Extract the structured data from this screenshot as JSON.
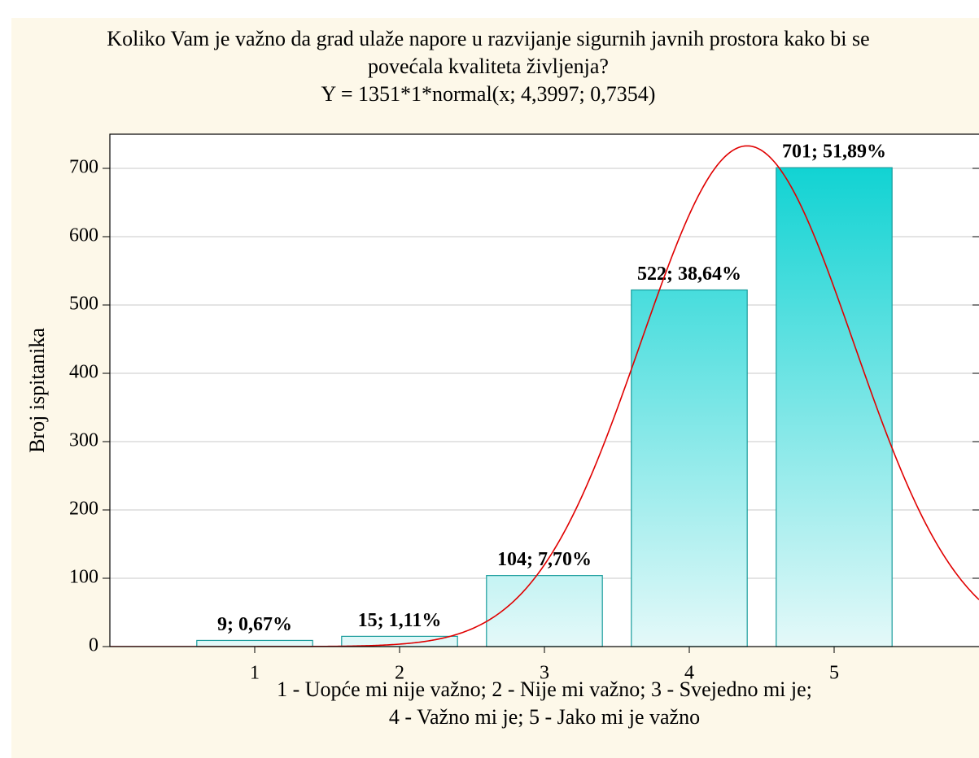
{
  "chart_data": {
    "type": "histogram",
    "title": [
      "Koliko Vam je važno da grad ulaže napore u razvijanje sigurnih javnih prostora kako bi se",
      "povećala kvaliteta življenja?"
    ],
    "subtitle": "Y = 1351*1*normal(x; 4,3997; 0,7354)",
    "fit": {
      "n": 1351,
      "mean": 4.3997,
      "sd": 0.7354
    },
    "x": [
      1,
      2,
      3,
      4,
      5
    ],
    "values": [
      9,
      15,
      104,
      522,
      701
    ],
    "value_labels": [
      "9; 0,67%",
      "15; 1,11%",
      "104; 7,70%",
      "522; 38,64%",
      "701; 51,89%"
    ],
    "x_label": [
      "1 - Uopće mi nije važno; 2 - Nije mi važno; 3 - Svejedno mi je;",
      "4 - Važno mi je; 5 - Jako mi je važno"
    ],
    "y_label": "Broj ispitanika",
    "xlim": [
      0,
      6
    ],
    "xticks": [
      1,
      2,
      3,
      4,
      5
    ],
    "ylim": [
      0,
      750
    ],
    "yticks": [
      0,
      100,
      200,
      300,
      400,
      500,
      600,
      700
    ],
    "grid": true,
    "bar_color_top": "#12d3d3",
    "bar_color_bottom": "#e4f9f9",
    "bar_edge": "#1a9c9c",
    "curve_color": "#e00000"
  }
}
